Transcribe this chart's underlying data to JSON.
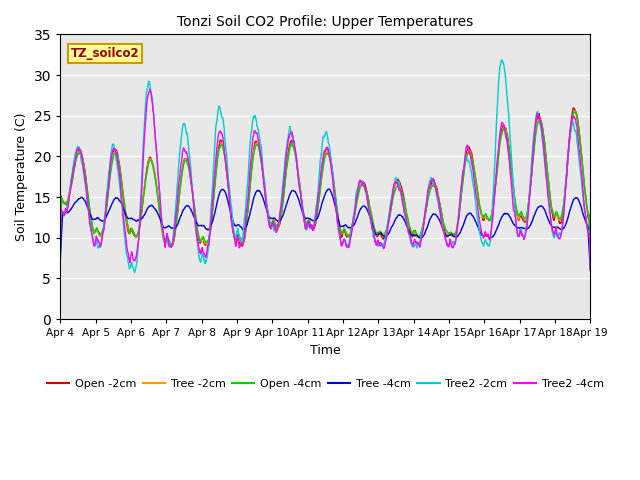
{
  "title": "Tonzi Soil CO2 Profile: Upper Temperatures",
  "xlabel": "Time",
  "ylabel": "Soil Temperature (C)",
  "watermark": "TZ_soilco2",
  "ylim": [
    0,
    35
  ],
  "yticks": [
    0,
    5,
    10,
    15,
    20,
    25,
    30,
    35
  ],
  "x_labels": [
    "Apr 4",
    "Apr 5",
    "Apr 6",
    "Apr 7",
    "Apr 8",
    "Apr 9",
    "Apr 10",
    "Apr 11",
    "Apr 12",
    "Apr 13",
    "Apr 14",
    "Apr 15",
    "Apr 16",
    "Apr 17",
    "Apr 18",
    "Apr 19"
  ],
  "fig_width": 6.4,
  "fig_height": 4.8,
  "dpi": 100,
  "bg_color": "#ffffff",
  "plot_bg": "#e8e8e8",
  "grid_color": "#ffffff",
  "series_colors": {
    "Open -2cm": "#cc0000",
    "Tree -2cm": "#ff9900",
    "Open -4cm": "#00cc00",
    "Tree -4cm": "#0000cc",
    "Tree2 -2cm": "#00cccc",
    "Tree2 -4cm": "#ff00ff"
  },
  "linewidth": 1.0,
  "watermark_color": "#990000",
  "watermark_bg": "#ffff99",
  "watermark_edge": "#cc9900"
}
